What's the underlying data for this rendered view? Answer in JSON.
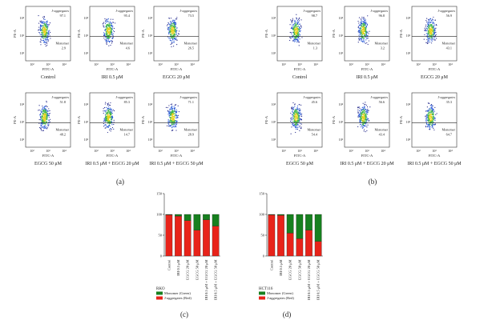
{
  "axis": {
    "x": "FITC-A",
    "y": "PE-A",
    "ticks": [
      "10²",
      "10³",
      "10⁴"
    ]
  },
  "flow_panels": [
    {
      "label": "(a)",
      "plots": [
        {
          "caption": "Control",
          "aggregates": "J-aggregates",
          "agg_pct": "97.1",
          "monomer": "Monomer",
          "mono_pct": "2.9"
        },
        {
          "caption": "IRI 0.5 μM",
          "aggregates": "J-aggregates",
          "agg_pct": "95.4",
          "monomer": "Monomer",
          "mono_pct": "4.6"
        },
        {
          "caption": "EGCG 20 μM",
          "aggregates": "J-aggregates",
          "agg_pct": "73.5",
          "monomer": "Monomer",
          "mono_pct": "26.5"
        },
        {
          "caption": "EGCG 50 μM",
          "aggregates": "J-aggregates",
          "agg_pct": "51.8",
          "monomer": "Monomer",
          "mono_pct": "48.2"
        },
        {
          "caption": "IRI 0.5 μM + EGCG 20 μM",
          "aggregates": "J-aggregates",
          "agg_pct": "85.3",
          "monomer": "Monomer",
          "mono_pct": "14.7"
        },
        {
          "caption": "IRI 0.5 μM + EGCG 50 μM",
          "aggregates": "J-aggregates",
          "agg_pct": "71.1",
          "monomer": "Monomer",
          "mono_pct": "28.9"
        }
      ]
    },
    {
      "label": "(b)",
      "plots": [
        {
          "caption": "Control",
          "aggregates": "J-aggregates",
          "agg_pct": "98.7",
          "monomer": "Monomer",
          "mono_pct": "1.3"
        },
        {
          "caption": "IRI 0.5 μM",
          "aggregates": "J-aggregates",
          "agg_pct": "96.8",
          "monomer": "Monomer",
          "mono_pct": "3.2"
        },
        {
          "caption": "EGCG 20 μM",
          "aggregates": "J-aggregates",
          "agg_pct": "56.9",
          "monomer": "Monomer",
          "mono_pct": "43.1"
        },
        {
          "caption": "EGCG 50 μM",
          "aggregates": "J-aggregates",
          "agg_pct": "45.6",
          "monomer": "Monomer",
          "mono_pct": "54.4"
        },
        {
          "caption": "IRI 0.5 μM + EGCG 20 μM",
          "aggregates": "J-aggregates",
          "agg_pct": "56.6",
          "monomer": "Monomer",
          "mono_pct": "43.4"
        },
        {
          "caption": "IRI 0.5 μM + EGCG 50 μM",
          "aggregates": "J-aggregates",
          "agg_pct": "35.3",
          "monomer": "Monomer",
          "mono_pct": "64.7"
        }
      ]
    }
  ],
  "chart_data": [
    {
      "type": "bar",
      "stacked": true,
      "panel_label": "(c)",
      "legend_title": "RKO",
      "categories": [
        "Control",
        "IRI 0.5 μM",
        "EGCG 20 μM",
        "EGCG 50 μM",
        "IRI 0.5 μM + EGCG 20 μM",
        "IRI 0.5 μM + EGCG 50 μM"
      ],
      "series": [
        {
          "name": "J-aggregates (Red)",
          "color": "#e8231a",
          "values": [
            99,
            96,
            85,
            62,
            87,
            72
          ]
        },
        {
          "name": "Monomer (Green)",
          "color": "#17801f",
          "values": [
            1,
            4,
            15,
            38,
            13,
            28
          ]
        }
      ],
      "ylim": [
        0,
        150
      ],
      "yticks": [
        0,
        50,
        100,
        150
      ]
    },
    {
      "type": "bar",
      "stacked": true,
      "panel_label": "(d)",
      "legend_title": "HCT116",
      "categories": [
        "Control",
        "IRI 0.5 μM",
        "EGCG 20 μM",
        "EGCG 50 μM",
        "IRI 0.5 μM + EGCG 20 μM",
        "IRI 0.5 μM + EGCG 50 μM"
      ],
      "series": [
        {
          "name": "J-aggregates (Red)",
          "color": "#e8231a",
          "values": [
            99,
            98,
            55,
            42,
            62,
            35
          ]
        },
        {
          "name": "Monomer (Green)",
          "color": "#17801f",
          "values": [
            1,
            2,
            45,
            58,
            38,
            65
          ]
        }
      ],
      "ylim": [
        0,
        150
      ],
      "yticks": [
        0,
        50,
        100,
        150
      ]
    }
  ]
}
